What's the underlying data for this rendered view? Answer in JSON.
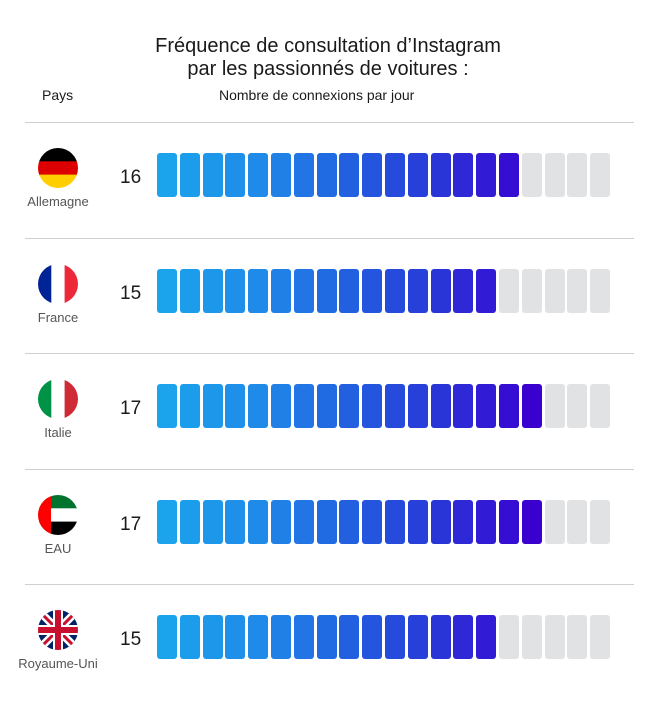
{
  "chart_data": {
    "type": "bar",
    "title_lines": [
      "Fréquence de consultation d’Instagram",
      "par les passionnés de voitures :"
    ],
    "xlabel": "Nombre de connexions par jour",
    "category_header": "Pays",
    "categories": [
      "Allemagne",
      "France",
      "Italie",
      "EAU",
      "Royaume-Uni"
    ],
    "values": [
      16,
      15,
      17,
      17,
      15
    ],
    "max_value": 20,
    "flag_icons": [
      "germany-flag-icon",
      "france-flag-icon",
      "italy-flag-icon",
      "uae-flag-icon",
      "uk-flag-icon"
    ],
    "colors": {
      "gradient": [
        "#1ba3ec",
        "#1f8ae8",
        "#2260e0",
        "#2a35d8",
        "#3a00d0"
      ],
      "empty": "#e1e2e4"
    }
  }
}
